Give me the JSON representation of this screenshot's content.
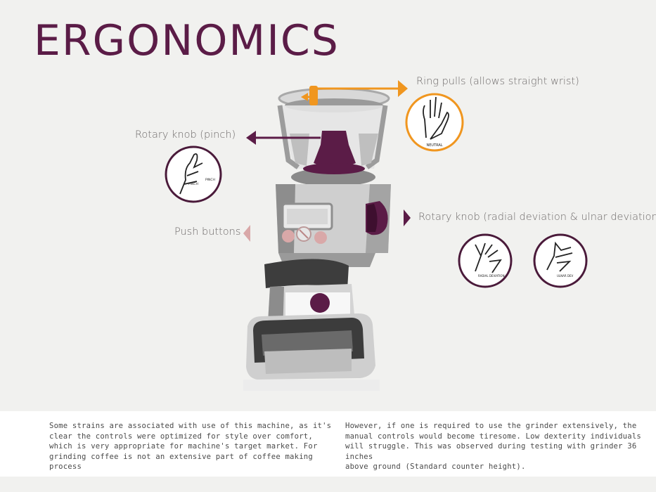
{
  "title": "ERGONOMICS",
  "labels": {
    "ring_pulls": "Ring pulls (allows straight wrist)",
    "rotary_pinch": "Rotary knob (pinch)",
    "push_buttons": "Push buttons",
    "rotary_deviation": "Rotary knob (radial deviation & ulnar deviation)"
  },
  "hand_captions": {
    "neutral": "NEUTRAL",
    "pinch_left": "PINCH",
    "pinch_right": "PINCH",
    "radial": "RADIAL DEVIATION",
    "ulnar": "ULNAR DEV"
  },
  "colors": {
    "title": "#5b1c47",
    "orange": "#f0961f",
    "plum": "#5b1c47",
    "pink": "#d9a8a8"
  },
  "icons": [
    "arrow-right-icon",
    "arrow-left-icon",
    "hand-neutral-icon",
    "hand-pinch-icon",
    "hand-radial-icon",
    "hand-ulnar-icon"
  ],
  "paragraphs": {
    "left": "Some strains are associated with use of this machine, as it's\nclear the controls were optimized for style over comfort,\nwhich is very appropriate for machine's target market. For\ngrinding coffee is not an extensive part of coffee making process",
    "right": "However, if one is required to use the grinder extensively, the\nmanual controls would become tiresome. Low dexterity individuals\nwill struggle. This was observed during testing with grinder 36 inches\nabove ground (Standard counter height)."
  }
}
